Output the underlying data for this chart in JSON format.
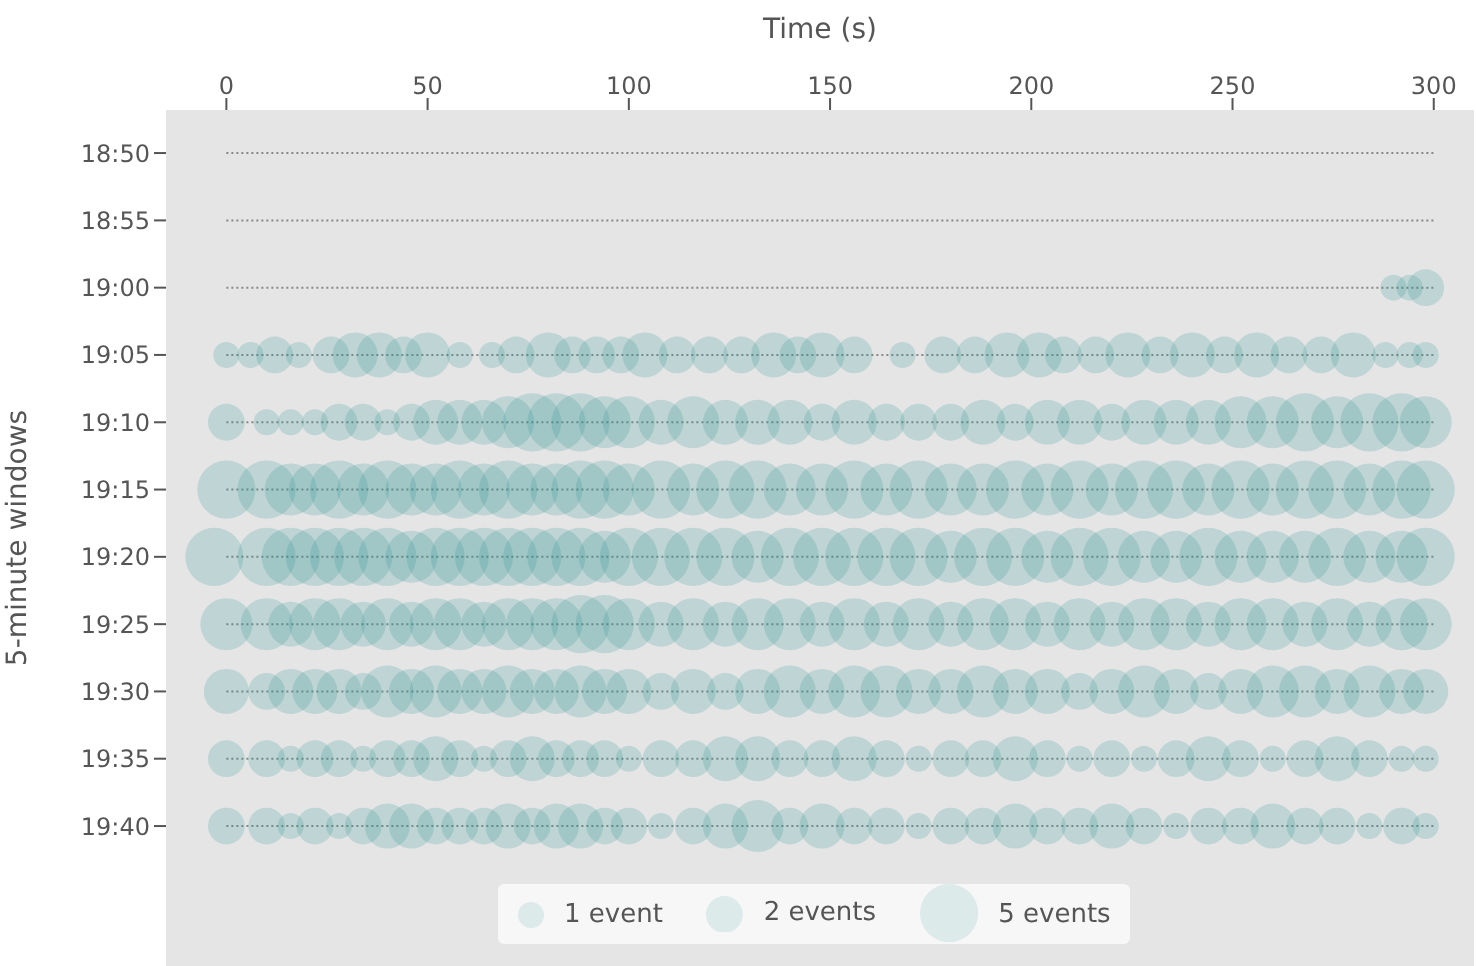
{
  "chart_data": {
    "type": "bubble",
    "xlabel": "Time (s)",
    "ylabel": "5-minute windows",
    "xlim": [
      -15,
      310
    ],
    "xticks": [
      0,
      50,
      100,
      150,
      200,
      250,
      300
    ],
    "ylim": [
      19.84,
      18.78
    ],
    "yticks": [
      {
        "value": 18.8333,
        "label": "18:50"
      },
      {
        "value": 18.9167,
        "label": "18:55"
      },
      {
        "value": 19,
        "label": "19:00"
      },
      {
        "value": 19.0833,
        "label": "19:05"
      },
      {
        "value": 19.1667,
        "label": "19:10"
      },
      {
        "value": 19.25,
        "label": "19:15"
      },
      {
        "value": 19.3333,
        "label": "19:20"
      },
      {
        "value": 19.4167,
        "label": "19:25"
      },
      {
        "value": 19.5,
        "label": "19:30"
      },
      {
        "value": 19.5833,
        "label": "19:35"
      },
      {
        "value": 19.6667,
        "label": "19:40"
      }
    ],
    "grid": "y",
    "size_legend": [
      {
        "value": 1,
        "label": "1 event"
      },
      {
        "value": 2,
        "label": "2 events"
      },
      {
        "value": 5,
        "label": "5 events"
      }
    ],
    "series": [
      {
        "color": "#2a9393",
        "x": [
          290,
          294,
          298
        ],
        "values": [
          19,
          19,
          19
        ],
        "sizes": [
          1,
          1,
          2
        ]
      },
      {
        "color": "#2a9393",
        "x": [
          0,
          6,
          12,
          18,
          26,
          32,
          38,
          44,
          50,
          58,
          66,
          72,
          80,
          86,
          92,
          98,
          104,
          112,
          120,
          128,
          136,
          142,
          148,
          156,
          168,
          178,
          186,
          194,
          202,
          208,
          216,
          224,
          232,
          240,
          248,
          256,
          264,
          272,
          280,
          288,
          294,
          298
        ],
        "values": [
          19.0833,
          19.0833,
          19.0833,
          19.0833,
          19.0833,
          19.0833,
          19.0833,
          19.0833,
          19.0833,
          19.0833,
          19.0833,
          19.0833,
          19.0833,
          19.0833,
          19.0833,
          19.0833,
          19.0833,
          19.0833,
          19.0833,
          19.0833,
          19.0833,
          19.0833,
          19.0833,
          19.0833,
          19.0833,
          19.0833,
          19.0833,
          19.0833,
          19.0833,
          19.0833,
          19.0833,
          19.0833,
          19.0833,
          19.0833,
          19.0833,
          19.0833,
          19.0833,
          19.0833,
          19.0833,
          19.0833,
          19.0833,
          19.0833
        ],
        "sizes": [
          1,
          1,
          2,
          1,
          2,
          3,
          3,
          2,
          3,
          1,
          1,
          2,
          3,
          2,
          2,
          2,
          3,
          2,
          2,
          2,
          3,
          2,
          3,
          2,
          1,
          2,
          2,
          3,
          3,
          2,
          2,
          3,
          2,
          3,
          2,
          3,
          2,
          2,
          3,
          1,
          1,
          1
        ]
      },
      {
        "color": "#2a9393",
        "x": [
          0,
          10,
          16,
          22,
          28,
          34,
          40,
          46,
          52,
          58,
          64,
          70,
          76,
          82,
          88,
          94,
          100,
          108,
          116,
          124,
          132,
          140,
          148,
          156,
          164,
          172,
          180,
          188,
          196,
          204,
          212,
          220,
          228,
          236,
          244,
          252,
          260,
          268,
          276,
          284,
          292,
          298
        ],
        "values": [
          19.1667,
          19.1667,
          19.1667,
          19.1667,
          19.1667,
          19.1667,
          19.1667,
          19.1667,
          19.1667,
          19.1667,
          19.1667,
          19.1667,
          19.1667,
          19.1667,
          19.1667,
          19.1667,
          19.1667,
          19.1667,
          19.1667,
          19.1667,
          19.1667,
          19.1667,
          19.1667,
          19.1667,
          19.1667,
          19.1667,
          19.1667,
          19.1667,
          19.1667,
          19.1667,
          19.1667,
          19.1667,
          19.1667,
          19.1667,
          19.1667,
          19.1667,
          19.1667,
          19.1667,
          19.1667,
          19.1667,
          19.1667,
          19.1667
        ],
        "sizes": [
          2,
          1,
          1,
          1,
          2,
          2,
          1,
          2,
          3,
          3,
          3,
          4,
          5,
          5,
          5,
          4,
          4,
          3,
          4,
          3,
          3,
          3,
          2,
          3,
          2,
          2,
          2,
          3,
          2,
          3,
          3,
          2,
          3,
          3,
          3,
          4,
          4,
          5,
          4,
          5,
          5,
          4
        ]
      },
      {
        "color": "#2a9393",
        "x": [
          0,
          10,
          16,
          22,
          28,
          34,
          40,
          46,
          52,
          58,
          64,
          70,
          76,
          82,
          88,
          94,
          100,
          108,
          116,
          124,
          132,
          140,
          148,
          156,
          164,
          172,
          180,
          188,
          196,
          204,
          212,
          220,
          228,
          236,
          244,
          252,
          260,
          268,
          276,
          284,
          292,
          298
        ],
        "values": [
          19.25,
          19.25,
          19.25,
          19.25,
          19.25,
          19.25,
          19.25,
          19.25,
          19.25,
          19.25,
          19.25,
          19.25,
          19.25,
          19.25,
          19.25,
          19.25,
          19.25,
          19.25,
          19.25,
          19.25,
          19.25,
          19.25,
          19.25,
          19.25,
          19.25,
          19.25,
          19.25,
          19.25,
          19.25,
          19.25,
          19.25,
          19.25,
          19.25,
          19.25,
          19.25,
          19.25,
          19.25,
          19.25,
          19.25,
          19.25,
          19.25,
          19.25
        ],
        "sizes": [
          5,
          5,
          4,
          4,
          5,
          4,
          5,
          4,
          4,
          5,
          4,
          5,
          4,
          4,
          5,
          5,
          4,
          5,
          4,
          5,
          5,
          4,
          4,
          5,
          4,
          5,
          4,
          4,
          5,
          4,
          5,
          4,
          5,
          5,
          4,
          5,
          4,
          5,
          5,
          4,
          5,
          5
        ]
      },
      {
        "color": "#2a9393",
        "x": [
          -3,
          10,
          16,
          22,
          28,
          34,
          40,
          46,
          52,
          58,
          64,
          70,
          76,
          82,
          88,
          94,
          100,
          108,
          116,
          124,
          132,
          140,
          148,
          156,
          164,
          172,
          180,
          188,
          196,
          204,
          212,
          220,
          228,
          236,
          244,
          252,
          260,
          268,
          276,
          284,
          292,
          298
        ],
        "values": [
          19.3333,
          19.3333,
          19.3333,
          19.3333,
          19.3333,
          19.3333,
          19.3333,
          19.3333,
          19.3333,
          19.3333,
          19.3333,
          19.3333,
          19.3333,
          19.3333,
          19.3333,
          19.3333,
          19.3333,
          19.3333,
          19.3333,
          19.3333,
          19.3333,
          19.3333,
          19.3333,
          19.3333,
          19.3333,
          19.3333,
          19.3333,
          19.3333,
          19.3333,
          19.3333,
          19.3333,
          19.3333,
          19.3333,
          19.3333,
          19.3333,
          19.3333,
          19.3333,
          19.3333,
          19.3333,
          19.3333,
          19.3333,
          19.3333
        ],
        "sizes": [
          5,
          5,
          5,
          5,
          5,
          5,
          5,
          4,
          5,
          5,
          5,
          5,
          5,
          5,
          5,
          4,
          5,
          5,
          5,
          5,
          4,
          5,
          5,
          5,
          5,
          5,
          4,
          5,
          5,
          4,
          5,
          5,
          4,
          4,
          5,
          4,
          4,
          4,
          5,
          4,
          4,
          5
        ]
      },
      {
        "color": "#2a9393",
        "x": [
          0,
          10,
          16,
          22,
          28,
          34,
          40,
          46,
          52,
          58,
          64,
          70,
          76,
          82,
          88,
          94,
          100,
          108,
          116,
          124,
          132,
          140,
          148,
          156,
          164,
          172,
          180,
          188,
          196,
          204,
          212,
          220,
          228,
          236,
          244,
          252,
          260,
          268,
          276,
          284,
          292,
          298
        ],
        "values": [
          19.4167,
          19.4167,
          19.4167,
          19.4167,
          19.4167,
          19.4167,
          19.4167,
          19.4167,
          19.4167,
          19.4167,
          19.4167,
          19.4167,
          19.4167,
          19.4167,
          19.4167,
          19.4167,
          19.4167,
          19.4167,
          19.4167,
          19.4167,
          19.4167,
          19.4167,
          19.4167,
          19.4167,
          19.4167,
          19.4167,
          19.4167,
          19.4167,
          19.4167,
          19.4167,
          19.4167,
          19.4167,
          19.4167,
          19.4167,
          19.4167,
          19.4167,
          19.4167,
          19.4167,
          19.4167,
          19.4167,
          19.4167,
          19.4167
        ],
        "sizes": [
          4,
          4,
          3,
          4,
          4,
          3,
          4,
          3,
          4,
          4,
          3,
          4,
          4,
          4,
          5,
          5,
          4,
          3,
          4,
          3,
          4,
          4,
          3,
          4,
          3,
          4,
          3,
          4,
          4,
          3,
          4,
          3,
          4,
          4,
          3,
          4,
          4,
          3,
          4,
          3,
          4,
          4
        ]
      },
      {
        "color": "#2a9393",
        "x": [
          0,
          10,
          16,
          22,
          28,
          34,
          40,
          46,
          52,
          58,
          64,
          70,
          76,
          82,
          88,
          94,
          100,
          108,
          116,
          124,
          132,
          140,
          148,
          156,
          164,
          172,
          180,
          188,
          196,
          204,
          212,
          220,
          228,
          236,
          244,
          252,
          260,
          268,
          276,
          284,
          292,
          298
        ],
        "values": [
          19.5,
          19.5,
          19.5,
          19.5,
          19.5,
          19.5,
          19.5,
          19.5,
          19.5,
          19.5,
          19.5,
          19.5,
          19.5,
          19.5,
          19.5,
          19.5,
          19.5,
          19.5,
          19.5,
          19.5,
          19.5,
          19.5,
          19.5,
          19.5,
          19.5,
          19.5,
          19.5,
          19.5,
          19.5,
          19.5,
          19.5,
          19.5,
          19.5,
          19.5,
          19.5,
          19.5,
          19.5,
          19.5,
          19.5,
          19.5,
          19.5,
          19.5
        ],
        "sizes": [
          3,
          2,
          3,
          3,
          3,
          2,
          4,
          3,
          4,
          3,
          3,
          4,
          3,
          3,
          4,
          3,
          3,
          2,
          3,
          2,
          3,
          4,
          3,
          4,
          4,
          3,
          3,
          4,
          3,
          3,
          2,
          3,
          4,
          3,
          2,
          3,
          4,
          4,
          3,
          4,
          3,
          3
        ]
      },
      {
        "color": "#2a9393",
        "x": [
          0,
          10,
          16,
          22,
          28,
          34,
          40,
          46,
          52,
          58,
          64,
          70,
          76,
          82,
          88,
          94,
          100,
          108,
          116,
          124,
          132,
          140,
          148,
          156,
          164,
          172,
          180,
          188,
          196,
          204,
          212,
          220,
          228,
          236,
          244,
          252,
          260,
          268,
          276,
          284,
          292,
          298
        ],
        "values": [
          19.5833,
          19.5833,
          19.5833,
          19.5833,
          19.5833,
          19.5833,
          19.5833,
          19.5833,
          19.5833,
          19.5833,
          19.5833,
          19.5833,
          19.5833,
          19.5833,
          19.5833,
          19.5833,
          19.5833,
          19.5833,
          19.5833,
          19.5833,
          19.5833,
          19.5833,
          19.5833,
          19.5833,
          19.5833,
          19.5833,
          19.5833,
          19.5833,
          19.5833,
          19.5833,
          19.5833,
          19.5833,
          19.5833,
          19.5833,
          19.5833,
          19.5833,
          19.5833,
          19.5833,
          19.5833,
          19.5833,
          19.5833,
          19.5833
        ],
        "sizes": [
          2,
          2,
          1,
          2,
          2,
          1,
          2,
          2,
          3,
          2,
          1,
          2,
          3,
          2,
          2,
          2,
          1,
          2,
          2,
          3,
          3,
          2,
          2,
          3,
          2,
          1,
          2,
          2,
          3,
          2,
          1,
          2,
          1,
          2,
          3,
          2,
          1,
          2,
          3,
          2,
          1,
          1
        ]
      },
      {
        "color": "#2a9393",
        "x": [
          0,
          10,
          16,
          22,
          28,
          34,
          40,
          46,
          52,
          58,
          64,
          70,
          76,
          82,
          88,
          94,
          100,
          108,
          116,
          124,
          132,
          140,
          148,
          156,
          164,
          172,
          180,
          188,
          196,
          204,
          212,
          220,
          228,
          236,
          244,
          252,
          260,
          268,
          276,
          284,
          292,
          298
        ],
        "values": [
          19.6667,
          19.6667,
          19.6667,
          19.6667,
          19.6667,
          19.6667,
          19.6667,
          19.6667,
          19.6667,
          19.6667,
          19.6667,
          19.6667,
          19.6667,
          19.6667,
          19.6667,
          19.6667,
          19.6667,
          19.6667,
          19.6667,
          19.6667,
          19.6667,
          19.6667,
          19.6667,
          19.6667,
          19.6667,
          19.6667,
          19.6667,
          19.6667,
          19.6667,
          19.6667,
          19.6667,
          19.6667,
          19.6667,
          19.6667,
          19.6667,
          19.6667,
          19.6667,
          19.6667,
          19.6667,
          19.6667,
          19.6667,
          19.6667
        ],
        "sizes": [
          2,
          2,
          1,
          2,
          1,
          2,
          3,
          3,
          2,
          2,
          2,
          3,
          2,
          3,
          3,
          2,
          2,
          1,
          2,
          3,
          4,
          2,
          3,
          2,
          2,
          1,
          2,
          2,
          3,
          2,
          2,
          3,
          2,
          1,
          2,
          2,
          3,
          2,
          2,
          1,
          2,
          1
        ]
      }
    ]
  }
}
